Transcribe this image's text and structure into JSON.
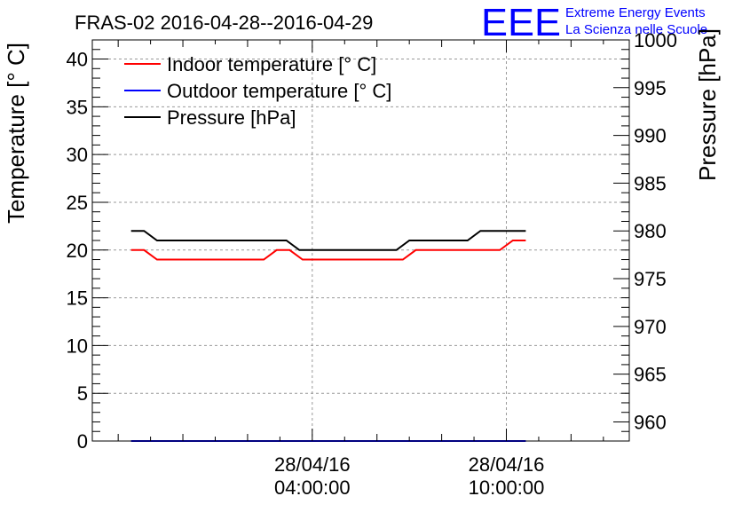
{
  "chart_data": {
    "type": "line",
    "title": "FRAS-02 2016-04-28--2016-04-29",
    "logo": {
      "mark": "EEE",
      "line1": "Extreme Energy Events",
      "line2": "La Scienza nelle Scuole"
    },
    "ylabel_left": "Temperature [° C]",
    "ylabel_right": "Pressure [hPa]",
    "ylim_left": [
      0,
      42
    ],
    "ylim_right": [
      958,
      1000
    ],
    "xlim_hours": [
      -2.8,
      13.8
    ],
    "left_ticks": [
      "0",
      "5",
      "10",
      "15",
      "20",
      "25",
      "30",
      "35",
      "40"
    ],
    "right_ticks": [
      "960",
      "965",
      "970",
      "975",
      "980",
      "985",
      "990",
      "995",
      "1000"
    ],
    "x_ticks": [
      {
        "date": "28/04/16",
        "time": "04:00:00",
        "hour": 4
      },
      {
        "date": "28/04/16",
        "time": "10:00:00",
        "hour": 10
      }
    ],
    "grid": true,
    "legend_position": "top-left",
    "series": [
      {
        "name": "Indoor temperature [° C]",
        "axis": "left",
        "color": "#ff0000",
        "x_hours": [
          -1.6,
          -1.2,
          -0.8,
          2.5,
          2.9,
          3.3,
          3.7,
          6.8,
          7.2,
          7.6,
          9.8,
          10.2,
          10.6
        ],
        "values": [
          20,
          20,
          19,
          19,
          20,
          20,
          19,
          19,
          20,
          20,
          20,
          21,
          21
        ]
      },
      {
        "name": "Outdoor temperature [° C]",
        "axis": "left",
        "color": "#0000ff",
        "x_hours": [
          -1.6,
          10.6
        ],
        "values": [
          0,
          0
        ]
      },
      {
        "name": "Pressure [hPa]",
        "axis": "right",
        "color": "#000000",
        "x_hours": [
          -1.6,
          -1.2,
          -0.8,
          3.2,
          3.6,
          6.6,
          7.0,
          8.8,
          9.2,
          10.6
        ],
        "values": [
          980,
          980,
          979,
          979,
          978,
          978,
          979,
          979,
          980,
          980
        ]
      }
    ]
  }
}
